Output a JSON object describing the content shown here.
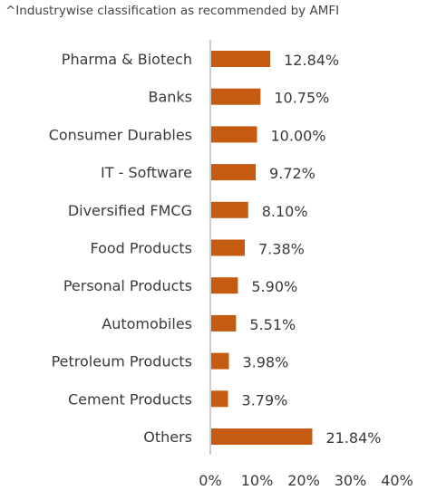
{
  "note": "^Industrywise classification as recommended by AMFI",
  "colors": {
    "bar": "#c55a11",
    "axis": "#9a9a9a"
  },
  "chart_data": {
    "type": "bar",
    "orientation": "horizontal",
    "categories": [
      "Pharma & Biotech",
      "Banks",
      "Consumer Durables",
      "IT - Software",
      "Diversified FMCG",
      "Food Products",
      "Personal Products",
      "Automobiles",
      "Petroleum Products",
      "Cement Products",
      "Others"
    ],
    "values": [
      12.84,
      10.75,
      10.0,
      9.72,
      8.1,
      7.38,
      5.9,
      5.51,
      3.98,
      3.79,
      21.84
    ],
    "value_labels": [
      "12.84%",
      "10.75%",
      "10.00%",
      "9.72%",
      "8.10%",
      "7.38%",
      "5.90%",
      "5.51%",
      "3.98%",
      "3.79%",
      "21.84%"
    ],
    "xlim": [
      0,
      40
    ],
    "xticks": [
      0,
      10,
      20,
      30,
      40
    ],
    "xtick_labels": [
      "0%",
      "10%",
      "20%",
      "30%",
      "40%"
    ],
    "grid": false,
    "legend": "none"
  }
}
